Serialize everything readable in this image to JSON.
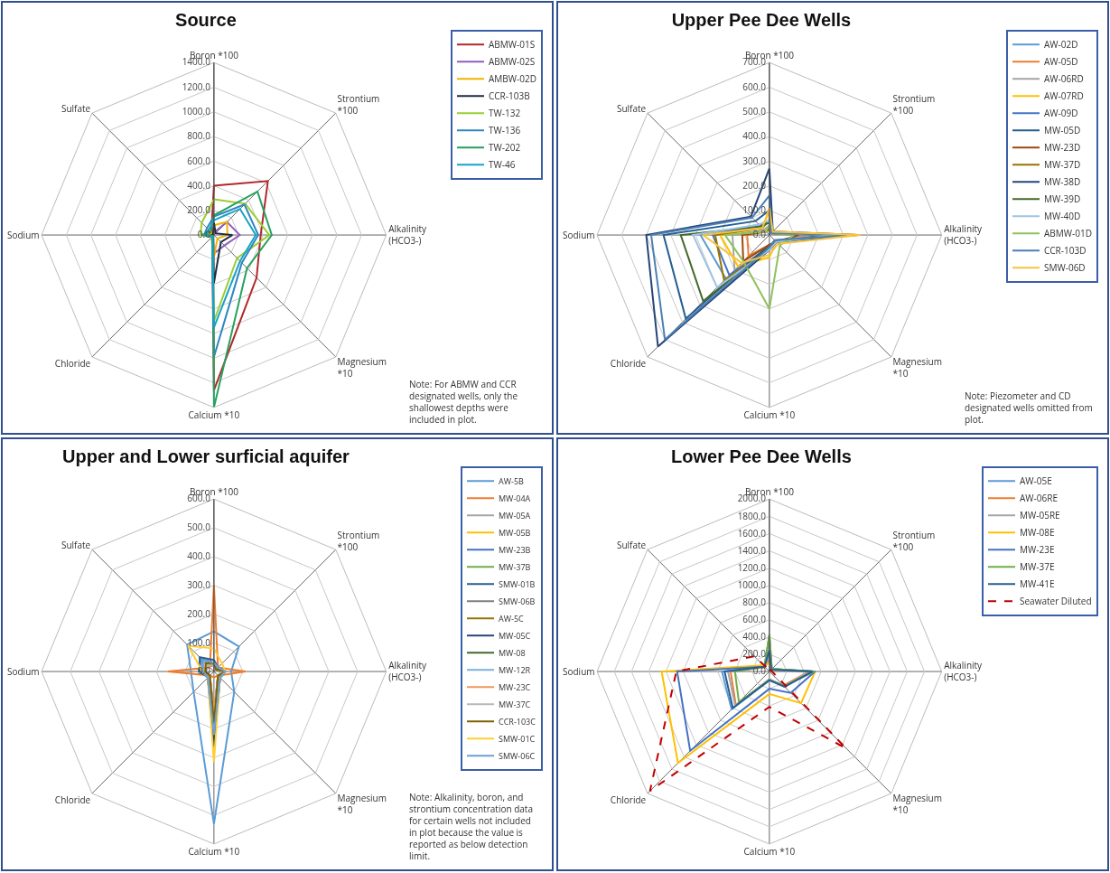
{
  "chart_data": [
    {
      "type": "radar",
      "title": "Source",
      "categories": [
        "Boron *100",
        "Strontium *100",
        "Alkalinity (HCO3-)",
        "Magnesium *10",
        "Calcium *10",
        "Chloride",
        "Sodium",
        "Sulfate"
      ],
      "ylim": [
        0,
        1400
      ],
      "yticks": [
        {
          "value": 0,
          "label": "0.0"
        },
        {
          "value": 200,
          "label": "200.0"
        },
        {
          "value": 400,
          "label": "400.0"
        },
        {
          "value": 600,
          "label": "600.0"
        },
        {
          "value": 800,
          "label": "800.0"
        },
        {
          "value": 1000,
          "label": "1000.0"
        },
        {
          "value": 1200,
          "label": "1200.0"
        },
        {
          "value": 1400,
          "label": "1400.0"
        }
      ],
      "grid": true,
      "legend": "right",
      "annotations": [
        "Note: For ABMW and CCR designated wells, only the shallowest depths were included in plot."
      ],
      "series": [
        {
          "name": "ABMW-01S",
          "color": "#b0282a",
          "values": [
            400,
            620,
            380,
            490,
            1260,
            20,
            60,
            30
          ]
        },
        {
          "name": "ABMW-02S",
          "color": "#8e5cc0",
          "values": [
            20,
            150,
            210,
            120,
            150,
            10,
            10,
            10
          ]
        },
        {
          "name": "AMBW-02D",
          "color": "#f0b400",
          "values": [
            80,
            150,
            110,
            40,
            180,
            30,
            70,
            20
          ]
        },
        {
          "name": "CCR-103B",
          "color": "#1f2a44",
          "values": [
            100,
            20,
            150,
            80,
            390,
            10,
            20,
            10
          ]
        },
        {
          "name": "TW-132",
          "color": "#9acd32",
          "values": [
            290,
            360,
            450,
            265,
            700,
            20,
            110,
            140
          ]
        },
        {
          "name": "TW-136",
          "color": "#2e86c1",
          "values": [
            150,
            350,
            360,
            320,
            990,
            20,
            80,
            80
          ]
        },
        {
          "name": "TW-202",
          "color": "#27a060",
          "values": [
            160,
            500,
            470,
            380,
            1400,
            10,
            100,
            40
          ]
        },
        {
          "name": "TW-46",
          "color": "#17a2c7",
          "values": [
            120,
            300,
            340,
            300,
            750,
            20,
            60,
            60
          ]
        }
      ]
    },
    {
      "type": "radar",
      "title": "Upper Pee Dee Wells",
      "categories": [
        "Boron *100",
        "Strontium *100",
        "Alkalinity (HCO3-)",
        "Magnesium *10",
        "Calcium *10",
        "Chloride",
        "Sodium",
        "Sulfate"
      ],
      "ylim": [
        0,
        700
      ],
      "yticks": [
        {
          "value": 0,
          "label": "0.0"
        },
        {
          "value": 100,
          "label": "100.0"
        },
        {
          "value": 200,
          "label": "200.0"
        },
        {
          "value": 300,
          "label": "300.0"
        },
        {
          "value": 400,
          "label": "400.0"
        },
        {
          "value": 500,
          "label": "500.0"
        },
        {
          "value": 600,
          "label": "600.0"
        },
        {
          "value": 700,
          "label": "700.0"
        }
      ],
      "grid": true,
      "legend": "right",
      "annotations": [
        "Note: Piezometer and CD designated wells omitted from plot."
      ],
      "series": [
        {
          "name": "AW-02D",
          "color": "#5b9bd5",
          "values": [
            60,
            10,
            250,
            40,
            60,
            250,
            280,
            50
          ]
        },
        {
          "name": "AW-05D",
          "color": "#ed7d31",
          "values": [
            20,
            10,
            150,
            40,
            40,
            120,
            90,
            20
          ]
        },
        {
          "name": "AW-06RD",
          "color": "#a5a5a5",
          "values": [
            40,
            10,
            200,
            30,
            50,
            200,
            150,
            30
          ]
        },
        {
          "name": "AW-07RD",
          "color": "#ffc000",
          "values": [
            100,
            20,
            360,
            40,
            90,
            180,
            200,
            40
          ]
        },
        {
          "name": "AW-09D",
          "color": "#4472c4",
          "values": [
            50,
            10,
            240,
            40,
            50,
            230,
            230,
            60
          ]
        },
        {
          "name": "MW-05D",
          "color": "#255e91",
          "values": [
            100,
            10,
            300,
            40,
            40,
            480,
            430,
            80
          ]
        },
        {
          "name": "MW-23D",
          "color": "#9e480e",
          "values": [
            30,
            10,
            120,
            40,
            40,
            150,
            110,
            20
          ]
        },
        {
          "name": "MW-37D",
          "color": "#997300",
          "values": [
            60,
            10,
            230,
            40,
            60,
            260,
            220,
            40
          ]
        },
        {
          "name": "MW-38D",
          "color": "#264478",
          "values": [
            270,
            20,
            360,
            40,
            60,
            640,
            500,
            106
          ]
        },
        {
          "name": "MW-39D",
          "color": "#43682b",
          "values": [
            50,
            10,
            250,
            40,
            50,
            380,
            360,
            50
          ]
        },
        {
          "name": "MW-40D",
          "color": "#9dc3e6",
          "values": [
            60,
            10,
            270,
            40,
            60,
            300,
            310,
            60
          ]
        },
        {
          "name": "ABMW-01D",
          "color": "#8fc15a",
          "values": [
            40,
            10,
            100,
            60,
            300,
            150,
            180,
            20
          ]
        },
        {
          "name": "CCR-103D",
          "color": "#4a7fb5",
          "values": [
            160,
            10,
            340,
            30,
            50,
            600,
            480,
            100
          ]
        },
        {
          "name": "SMW-06D",
          "color": "#f5c342",
          "values": [
            110,
            20,
            370,
            50,
            80,
            160,
            270,
            40
          ]
        }
      ]
    },
    {
      "type": "radar",
      "title": "Upper and Lower surficial aquifer",
      "categories": [
        "Boron *100",
        "Strontium *100",
        "Alkalinity (HCO3-)",
        "Magnesium *10",
        "Calcium *10",
        "Chloride",
        "Sodium",
        "Sulfate"
      ],
      "ylim": [
        0,
        600
      ],
      "yticks": [
        {
          "value": 0,
          "label": "0.0"
        },
        {
          "value": 100,
          "label": "100.0"
        },
        {
          "value": 200,
          "label": "200.0"
        },
        {
          "value": 300,
          "label": "300.0"
        },
        {
          "value": 400,
          "label": "400.0"
        },
        {
          "value": 500,
          "label": "500.0"
        },
        {
          "value": 600,
          "label": "600.0"
        }
      ],
      "grid": true,
      "legend": "right",
      "annotations": [
        "Note: Alkalinity, boron, and strontium concentration data for certain wells not included in plot because the value is reported as below detection limit."
      ],
      "series": [
        {
          "name": "AW-5B",
          "color": "#5b9bd5",
          "values": [
            140,
            123,
            60,
            100,
            530,
            100,
            80,
            132
          ]
        },
        {
          "name": "MW-04A",
          "color": "#ed7d31",
          "values": [
            300,
            20,
            110,
            20,
            20,
            20,
            160,
            20
          ]
        },
        {
          "name": "MW-05A",
          "color": "#a5a5a5",
          "values": [
            20,
            20,
            30,
            30,
            220,
            20,
            30,
            40
          ]
        },
        {
          "name": "MW-05B",
          "color": "#ffc000",
          "values": [
            30,
            20,
            30,
            30,
            200,
            20,
            30,
            40
          ]
        },
        {
          "name": "MW-23B",
          "color": "#4472c4",
          "values": [
            30,
            20,
            40,
            30,
            250,
            20,
            40,
            60
          ]
        },
        {
          "name": "MW-37B",
          "color": "#70ad47",
          "values": [
            20,
            10,
            30,
            20,
            180,
            20,
            30,
            30
          ]
        },
        {
          "name": "SMW-01B",
          "color": "#255e91",
          "values": [
            40,
            20,
            40,
            30,
            260,
            30,
            50,
            70
          ]
        },
        {
          "name": "SMW-06B",
          "color": "#7f7f7f",
          "values": [
            30,
            20,
            30,
            30,
            210,
            20,
            40,
            50
          ]
        },
        {
          "name": "AW-5C",
          "color": "#997300",
          "values": [
            20,
            10,
            40,
            20,
            150,
            20,
            30,
            30
          ]
        },
        {
          "name": "MW-05C",
          "color": "#264478",
          "values": [
            30,
            20,
            40,
            30,
            240,
            30,
            40,
            60
          ]
        },
        {
          "name": "MW-08",
          "color": "#43682b",
          "values": [
            20,
            10,
            30,
            20,
            160,
            20,
            30,
            30
          ]
        },
        {
          "name": "MW-12R",
          "color": "#7cafdd",
          "values": [
            30,
            20,
            40,
            30,
            200,
            20,
            40,
            50
          ]
        },
        {
          "name": "MW-23C",
          "color": "#f1975a",
          "values": [
            20,
            10,
            30,
            20,
            140,
            20,
            30,
            30
          ]
        },
        {
          "name": "MW-37C",
          "color": "#b7b7b7",
          "values": [
            20,
            10,
            30,
            20,
            170,
            20,
            30,
            30
          ]
        },
        {
          "name": "CCR-103C",
          "color": "#7f6000",
          "values": [
            30,
            10,
            40,
            20,
            180,
            20,
            30,
            40
          ]
        },
        {
          "name": "SMW-01C",
          "color": "#ffcd33",
          "values": [
            80,
            40,
            40,
            30,
            315,
            30,
            40,
            127
          ]
        },
        {
          "name": "SMW-06C",
          "color": "#6ea0d0",
          "values": [
            30,
            20,
            40,
            30,
            220,
            30,
            40,
            60
          ]
        }
      ]
    },
    {
      "type": "radar",
      "title": "Lower Pee Dee Wells",
      "categories": [
        "Boron *100",
        "Strontium *100",
        "Alkalinity (HCO3-)",
        "Magnesium *10",
        "Calcium *10",
        "Chloride",
        "Sodium",
        "Sulfate"
      ],
      "ylim": [
        0,
        2000
      ],
      "yticks": [
        {
          "value": 0,
          "label": "0.0"
        },
        {
          "value": 200,
          "label": "200.0"
        },
        {
          "value": 400,
          "label": "400.0"
        },
        {
          "value": 600,
          "label": "600.0"
        },
        {
          "value": 800,
          "label": "800.0"
        },
        {
          "value": 1000,
          "label": "1000.0"
        },
        {
          "value": 1200,
          "label": "1200.0"
        },
        {
          "value": 1400,
          "label": "1400.0"
        },
        {
          "value": 1600,
          "label": "1600.0"
        },
        {
          "value": 1800,
          "label": "1800.0"
        },
        {
          "value": 2000,
          "label": "2000.0"
        }
      ],
      "grid": true,
      "legend": "right",
      "series": [
        {
          "name": "AW-05E",
          "color": "#5b9bd5",
          "values": [
            200,
            40,
            480,
            250,
            100,
            620,
            550,
            80
          ]
        },
        {
          "name": "AW-06RE",
          "color": "#ed7d31",
          "values": [
            150,
            30,
            460,
            230,
            90,
            550,
            450,
            70
          ]
        },
        {
          "name": "MW-05RE",
          "color": "#a5a5a5",
          "values": [
            180,
            30,
            470,
            240,
            90,
            560,
            480,
            70
          ]
        },
        {
          "name": "MW-08E",
          "color": "#ffc000",
          "values": [
            100,
            40,
            530,
            520,
            260,
            1500,
            1250,
            100
          ]
        },
        {
          "name": "MW-23E",
          "color": "#4472c4",
          "values": [
            420,
            40,
            530,
            350,
            200,
            1300,
            1070,
            80
          ]
        },
        {
          "name": "MW-37E",
          "color": "#70ad47",
          "values": [
            430,
            40,
            520,
            240,
            100,
            500,
            400,
            80
          ]
        },
        {
          "name": "MW-41E",
          "color": "#255e91",
          "values": [
            250,
            30,
            500,
            250,
            100,
            600,
            520,
            80
          ]
        },
        {
          "name": "Seawater Diluted",
          "color": "#c00000",
          "line_style": "dashed",
          "values": [
            20,
            20,
            30,
            1260,
            410,
            1960,
            1080,
            250
          ]
        }
      ]
    }
  ]
}
